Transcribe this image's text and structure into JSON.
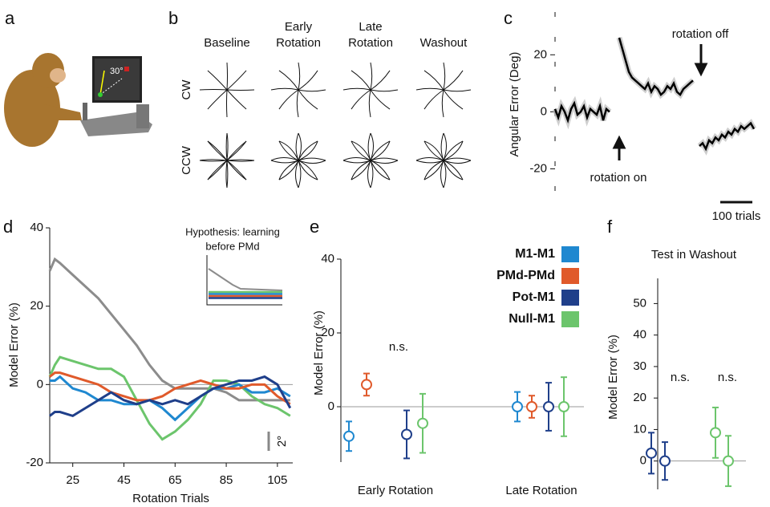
{
  "panel_a": {
    "label": "a",
    "angle_label": "30°"
  },
  "panel_b": {
    "label": "b",
    "columns": [
      [
        "Baseline"
      ],
      [
        "Early",
        "Rotation"
      ],
      [
        "Late",
        "Rotation"
      ],
      [
        "Washout"
      ]
    ],
    "rows": [
      "CW",
      "CCW"
    ]
  },
  "chart_data": [
    {
      "type": "line",
      "label": "c",
      "ylabel": "Angular Error (Deg)",
      "color": "#000000",
      "x": [
        0,
        10,
        20,
        30,
        40,
        50,
        60,
        70,
        80,
        90,
        100,
        110,
        120,
        130,
        140,
        150,
        160,
        170,
        180,
        190,
        200,
        210,
        220,
        230,
        240,
        250,
        260,
        270,
        280,
        290,
        300,
        310,
        320,
        330,
        340,
        350,
        360,
        370,
        380,
        390,
        400,
        410,
        420,
        430,
        440,
        450,
        460,
        470,
        480,
        490,
        500,
        510,
        520,
        530,
        540,
        550,
        560,
        570,
        580,
        590,
        600,
        610,
        620
      ],
      "values": [
        1,
        -2,
        2,
        0,
        -3,
        1,
        3,
        -1,
        0,
        2,
        -2,
        1,
        0,
        -1,
        2,
        -3,
        1,
        0,
        null,
        null,
        26,
        22,
        18,
        14,
        12,
        11,
        10,
        9,
        8,
        10,
        7,
        9,
        8,
        6,
        7,
        9,
        8,
        10,
        7,
        6,
        8,
        9,
        10,
        11,
        null,
        -12,
        -11,
        -13,
        -10,
        -11,
        -9,
        -10,
        -8,
        -9,
        -7,
        -8,
        -6,
        -7,
        -5,
        -6,
        -5,
        -4,
        -6
      ],
      "xlim": [
        0,
        620
      ],
      "ylim": [
        -30,
        35
      ],
      "yticks": [
        -20,
        0,
        20
      ],
      "annotations": [
        "rotation on",
        "rotation off",
        "100 trials"
      ]
    },
    {
      "type": "line",
      "label": "d",
      "ylabel": "Model Error (%)",
      "xlabel": "Rotation Trials",
      "x": [
        16,
        18,
        20,
        25,
        30,
        35,
        40,
        45,
        50,
        55,
        60,
        65,
        70,
        75,
        80,
        85,
        90,
        95,
        100,
        105,
        110
      ],
      "series": [
        {
          "color": "#8c8c8c",
          "values": [
            29,
            32,
            31,
            28,
            25,
            22,
            18,
            14,
            10,
            5,
            1,
            -1,
            -1,
            -1,
            -1,
            -2,
            -4,
            -4,
            -4,
            -4,
            -4
          ]
        },
        {
          "color": "#6cc56c",
          "values": [
            2,
            5,
            7,
            6,
            5,
            4,
            4,
            2,
            -4,
            -10,
            -14,
            -12,
            -9,
            -5,
            1,
            1,
            0,
            -3,
            -5,
            -6,
            -8
          ]
        },
        {
          "color": "#1f88d0",
          "values": [
            1,
            1,
            2,
            -1,
            -2,
            -4,
            -4,
            -5,
            -5,
            -4,
            -6,
            -9,
            -6,
            -3,
            -1,
            -1,
            0,
            -2,
            -2,
            -1,
            -3
          ]
        },
        {
          "color": "#e05a2b",
          "values": [
            2,
            3,
            3,
            2,
            1,
            0,
            -2,
            -3,
            -4,
            -4,
            -3,
            -1,
            0,
            1,
            0,
            -1,
            -1,
            0,
            0,
            -3,
            -5
          ]
        },
        {
          "color": "#1f3f8a",
          "values": [
            -8,
            -7,
            -7,
            -8,
            -6,
            -4,
            -2,
            -4,
            -5,
            -4,
            -5,
            -4,
            -5,
            -3,
            -1,
            0,
            1,
            1,
            2,
            0,
            -6
          ]
        }
      ],
      "xlim": [
        16,
        111
      ],
      "ylim": [
        -20,
        40
      ],
      "xticks": [
        25,
        45,
        65,
        85,
        105
      ],
      "yticks": [
        -20,
        0,
        20,
        40
      ],
      "annotations": [
        "Hypothesis: learning",
        "before PMd",
        "2°"
      ]
    },
    {
      "type": "errorbar",
      "label": "e",
      "ylabel": "Model Error (%)",
      "categories": [
        "Early Rotation",
        "Late Rotation"
      ],
      "series": [
        {
          "name": "M1-M1",
          "color": "#1f88d0",
          "values": [
            -8,
            0
          ],
          "errors": [
            4,
            4
          ]
        },
        {
          "name": "PMd-PMd",
          "color": "#e05a2b",
          "values": [
            6,
            0
          ],
          "errors": [
            3,
            3
          ]
        },
        {
          "name": "Pot-M1",
          "color": "#1f3f8a",
          "values": [
            -7.5,
            0
          ],
          "errors": [
            6.5,
            6.5
          ]
        },
        {
          "name": "Null-M1",
          "color": "#6cc56c",
          "values": [
            -4.5,
            0
          ],
          "errors": [
            8,
            8
          ]
        }
      ],
      "ylim": [
        -15,
        40
      ],
      "yticks": [
        0,
        20,
        40
      ],
      "annotations": [
        "n.s."
      ]
    },
    {
      "type": "errorbar",
      "label": "f",
      "title": "Test in Washout",
      "ylabel": "Model Error (%)",
      "series": [
        {
          "color": "#1f3f8a",
          "values": [
            2.5,
            0
          ],
          "errors": [
            6.5,
            6
          ]
        },
        {
          "color": "#6cc56c",
          "values": [
            9,
            0
          ],
          "errors": [
            8,
            8
          ]
        }
      ],
      "ylim": [
        -9,
        58
      ],
      "yticks": [
        0,
        10,
        20,
        30,
        40,
        50
      ],
      "annotations": [
        "n.s.",
        "n.s."
      ]
    }
  ]
}
